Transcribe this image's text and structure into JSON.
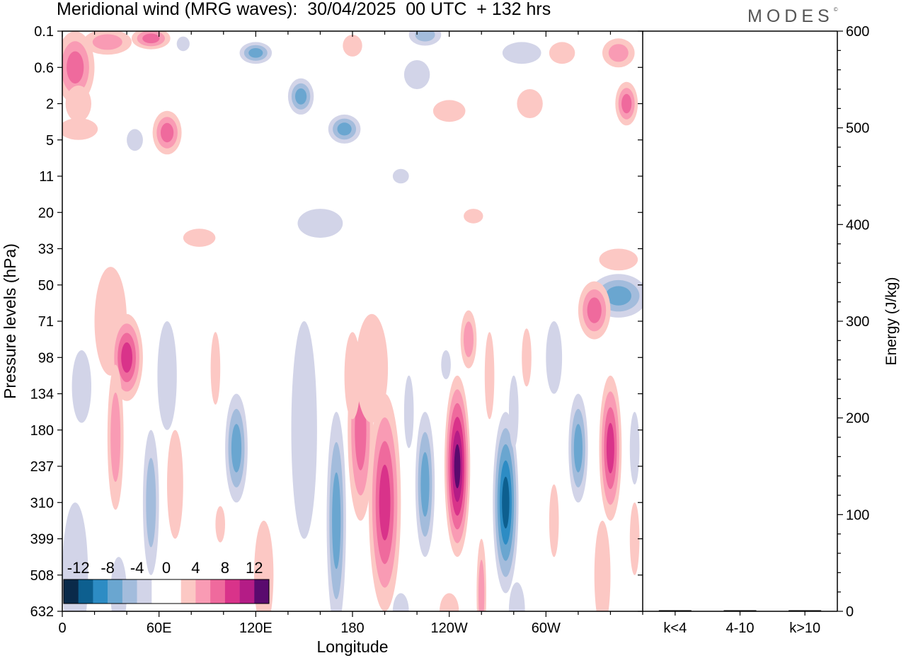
{
  "title": "Meridional wind (MRG waves):  30/04/2025  00 UTC  + 132 hrs",
  "brand": "MODES",
  "brand_mark": "©",
  "colors": {
    "blue_5": "#0a2a4a",
    "blue_4": "#0d5f8f",
    "blue_3": "#2d8cc4",
    "blue_2": "#6aa6d0",
    "blue_1": "#a3bcdc",
    "blue_0": "#d2d4e8",
    "red_0": "#fcc8c4",
    "red_1": "#f99bb4",
    "red_2": "#ef6a9d",
    "red_3": "#d9338a",
    "red_4": "#b41c86",
    "red_5": "#5a0a6e"
  },
  "chart_data": [
    {
      "type": "heatmap",
      "title": "Meridional wind (MRG waves):  30/04/2025  00 UTC  + 132 hrs",
      "xlabel": "Longitude",
      "ylabel": "Pressure levels (hPa)",
      "x_ticks": [
        "0",
        "60E",
        "120E",
        "180",
        "120W",
        "60W"
      ],
      "x_tick_values": [
        0,
        60,
        120,
        180,
        240,
        300
      ],
      "xlim": [
        0,
        360
      ],
      "y_ticks": [
        "0.1",
        "0.6",
        "2",
        "5",
        "11",
        "20",
        "33",
        "50",
        "71",
        "98",
        "134",
        "180",
        "237",
        "310",
        "399",
        "508",
        "632"
      ],
      "colorbar": {
        "labels": [
          "-12",
          "-8",
          "-4",
          "0",
          "4",
          "8",
          "12"
        ],
        "levels": [
          -12,
          -8,
          -4,
          0,
          4,
          8,
          12
        ],
        "placement": "bottom-left"
      },
      "features": [
        {
          "lon": 8,
          "level": 1.0,
          "value": 6,
          "dlon": 12,
          "dlev": 1.0
        },
        {
          "lon": 28,
          "level": 0.3,
          "value": 5,
          "dlon": 15,
          "dlev": 0.35
        },
        {
          "lon": 55,
          "level": 0.2,
          "value": 6,
          "dlon": 12,
          "dlev": 0.3
        },
        {
          "lon": 75,
          "level": 0.35,
          "value": -3,
          "dlon": 4,
          "dlev": 0.2
        },
        {
          "lon": 120,
          "level": 0.6,
          "value": -6,
          "dlon": 10,
          "dlev": 0.3
        },
        {
          "lon": 148,
          "level": 1.8,
          "value": -6,
          "dlon": 8,
          "dlev": 0.5
        },
        {
          "lon": 175,
          "level": 2.7,
          "value": -7,
          "dlon": 10,
          "dlev": 0.4
        },
        {
          "lon": 225,
          "level": 0.1,
          "value": -5,
          "dlon": 10,
          "dlev": 0.3
        },
        {
          "lon": 285,
          "level": 0.6,
          "value": -3,
          "dlon": 12,
          "dlev": 0.3
        },
        {
          "lon": 310,
          "level": 0.6,
          "value": 3,
          "dlon": 8,
          "dlev": 0.3
        },
        {
          "lon": 345,
          "level": 0.6,
          "value": 5,
          "dlon": 10,
          "dlev": 0.4
        },
        {
          "lon": 350,
          "level": 2.0,
          "value": 6,
          "dlon": 7,
          "dlev": 0.6
        },
        {
          "lon": 10,
          "level": 2.0,
          "value": 2,
          "dlon": 8,
          "dlev": 0.5
        },
        {
          "lon": 65,
          "level": 2.8,
          "value": 6,
          "dlon": 9,
          "dlev": 0.6
        },
        {
          "lon": 10,
          "level": 2.7,
          "value": 3,
          "dlon": 12,
          "dlev": 0.3
        },
        {
          "lon": 45,
          "level": 3.0,
          "value": -3,
          "dlon": 5,
          "dlev": 0.3
        },
        {
          "lon": 240,
          "level": 2.2,
          "value": 3,
          "dlon": 10,
          "dlev": 0.3
        },
        {
          "lon": 290,
          "level": 2.0,
          "value": 3,
          "dlon": 8,
          "dlev": 0.4
        },
        {
          "lon": 220,
          "level": 1.2,
          "value": -3,
          "dlon": 8,
          "dlev": 0.4
        },
        {
          "lon": 180,
          "level": 0.4,
          "value": 3,
          "dlon": 6,
          "dlev": 0.3
        },
        {
          "lon": 160,
          "level": 5.3,
          "value": -3,
          "dlon": 14,
          "dlev": 0.4
        },
        {
          "lon": 85,
          "level": 5.7,
          "value": 3,
          "dlon": 10,
          "dlev": 0.25
        },
        {
          "lon": 210,
          "level": 4.0,
          "value": -2,
          "dlon": 5,
          "dlev": 0.2
        },
        {
          "lon": 255,
          "level": 5.1,
          "value": 3,
          "dlon": 6,
          "dlev": 0.2
        },
        {
          "lon": 345,
          "level": 7.3,
          "value": -6,
          "dlon": 18,
          "dlev": 0.6
        },
        {
          "lon": 330,
          "level": 7.7,
          "value": 6,
          "dlon": 10,
          "dlev": 0.8
        },
        {
          "lon": 345,
          "level": 6.3,
          "value": 3,
          "dlon": 12,
          "dlev": 0.3
        },
        {
          "lon": 30,
          "level": 8.0,
          "value": 3,
          "dlon": 10,
          "dlev": 1.5
        },
        {
          "lon": 40,
          "level": 9.0,
          "value": 8,
          "dlon": 10,
          "dlev": 1.2
        },
        {
          "lon": 33,
          "level": 11.2,
          "value": 5,
          "dlon": 5,
          "dlev": 2.0
        },
        {
          "lon": 12,
          "level": 9.8,
          "value": -3,
          "dlon": 6,
          "dlev": 1.0
        },
        {
          "lon": 65,
          "level": 9.5,
          "value": -3,
          "dlon": 6,
          "dlev": 1.5
        },
        {
          "lon": 55,
          "level": 13.0,
          "value": -5,
          "dlon": 5,
          "dlev": 2.0
        },
        {
          "lon": 70,
          "level": 12.5,
          "value": 3,
          "dlon": 5,
          "dlev": 1.5
        },
        {
          "lon": 95,
          "level": 9.3,
          "value": 3,
          "dlon": 3,
          "dlev": 1.0
        },
        {
          "lon": 108,
          "level": 11.5,
          "value": -6,
          "dlon": 7,
          "dlev": 1.5
        },
        {
          "lon": 98,
          "level": 13.6,
          "value": 3,
          "dlon": 3,
          "dlev": 0.5
        },
        {
          "lon": 8,
          "level": 15.0,
          "value": -3,
          "dlon": 8,
          "dlev": 2.0
        },
        {
          "lon": 35,
          "level": 15.5,
          "value": -3,
          "dlon": 5,
          "dlev": 1.0
        },
        {
          "lon": 125,
          "level": 15.0,
          "value": 3,
          "dlon": 6,
          "dlev": 1.5
        },
        {
          "lon": 150,
          "level": 11.0,
          "value": -3,
          "dlon": 8,
          "dlev": 3.0
        },
        {
          "lon": 170,
          "level": 13.5,
          "value": -6,
          "dlon": 6,
          "dlev": 3.0
        },
        {
          "lon": 185,
          "level": 11.0,
          "value": 7,
          "dlon": 8,
          "dlev": 2.5
        },
        {
          "lon": 200,
          "level": 13.0,
          "value": 9,
          "dlon": 10,
          "dlev": 3.0
        },
        {
          "lon": 180,
          "level": 9.5,
          "value": 2,
          "dlon": 5,
          "dlev": 1.2
        },
        {
          "lon": 192,
          "level": 9.3,
          "value": 3,
          "dlon": 10,
          "dlev": 1.5
        },
        {
          "lon": 215,
          "level": 10.5,
          "value": -3,
          "dlon": 3,
          "dlev": 1.0
        },
        {
          "lon": 225,
          "level": 12.5,
          "value": -6,
          "dlon": 6,
          "dlev": 2.0
        },
        {
          "lon": 245,
          "level": 12.0,
          "value": 12,
          "dlon": 8,
          "dlev": 2.5
        },
        {
          "lon": 260,
          "level": 15.5,
          "value": 5,
          "dlon": 3,
          "dlev": 1.5
        },
        {
          "lon": 252,
          "level": 8.5,
          "value": 5,
          "dlon": 5,
          "dlev": 0.8
        },
        {
          "lon": 265,
          "level": 9.5,
          "value": 2,
          "dlon": 3,
          "dlev": 1.2
        },
        {
          "lon": 238,
          "level": 9.2,
          "value": -2,
          "dlon": 3,
          "dlev": 0.4
        },
        {
          "lon": 275,
          "level": 13.0,
          "value": -10,
          "dlon": 8,
          "dlev": 2.5
        },
        {
          "lon": 280,
          "level": 10.5,
          "value": -3,
          "dlon": 3,
          "dlev": 1.0
        },
        {
          "lon": 288,
          "level": 9.0,
          "value": 3,
          "dlon": 3,
          "dlev": 0.8
        },
        {
          "lon": 305,
          "level": 9.0,
          "value": -3,
          "dlon": 5,
          "dlev": 1.0
        },
        {
          "lon": 320,
          "level": 11.5,
          "value": -6,
          "dlon": 6,
          "dlev": 1.5
        },
        {
          "lon": 340,
          "level": 11.5,
          "value": 8,
          "dlon": 7,
          "dlev": 2.0
        },
        {
          "lon": 355,
          "level": 11.5,
          "value": -3,
          "dlon": 3,
          "dlev": 1.0
        },
        {
          "lon": 305,
          "level": 13.5,
          "value": 3,
          "dlon": 3,
          "dlev": 1.0
        },
        {
          "lon": 335,
          "level": 15.0,
          "value": 3,
          "dlon": 5,
          "dlev": 1.5
        },
        {
          "lon": 355,
          "level": 14.0,
          "value": 3,
          "dlon": 3,
          "dlev": 1.0
        },
        {
          "lon": 210,
          "level": 16.0,
          "value": -3,
          "dlon": 5,
          "dlev": 0.5
        },
        {
          "lon": 282,
          "level": 16.0,
          "value": -3,
          "dlon": 5,
          "dlev": 0.8
        },
        {
          "lon": 240,
          "level": 16.0,
          "value": 3,
          "dlon": 6,
          "dlev": 0.5
        }
      ]
    },
    {
      "type": "bar",
      "categories": [
        "k<4",
        "4-10",
        "k>10"
      ],
      "values": [
        0,
        1,
        0
      ],
      "ylabel": "Energy (J/kg)",
      "ylim": [
        0,
        600
      ],
      "y_ticks": [
        "0",
        "100",
        "200",
        "300",
        "400",
        "500",
        "600"
      ],
      "y_tick_values": [
        0,
        100,
        200,
        300,
        400,
        500,
        600
      ]
    }
  ]
}
